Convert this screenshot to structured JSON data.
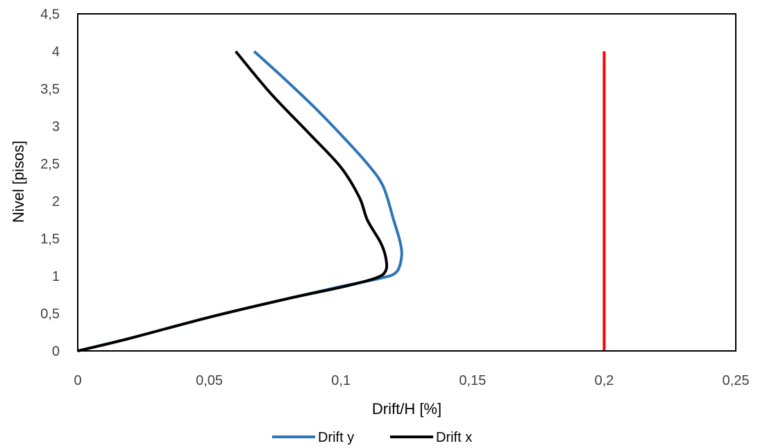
{
  "chart_data": {
    "type": "line",
    "title": "",
    "xlabel": "Drift/H [%]",
    "ylabel": "Nivel [pisos]",
    "xlim": [
      0,
      0.25
    ],
    "ylim": [
      0,
      4.5
    ],
    "xticks": [
      0,
      0.05,
      0.1,
      0.15,
      0.2,
      0.25
    ],
    "xtick_labels": [
      "0",
      "0,05",
      "0,1",
      "0,15",
      "0,2",
      "0,25"
    ],
    "yticks": [
      0,
      0.5,
      1,
      1.5,
      2,
      2.5,
      3,
      3.5,
      4,
      4.5
    ],
    "ytick_labels": [
      "0",
      "0,5",
      "1",
      "1,5",
      "2",
      "2,5",
      "3",
      "3,5",
      "4",
      "4,5"
    ],
    "grid": false,
    "legend_position": "bottom",
    "series": [
      {
        "name": "Drift y",
        "color": "#2E75B6",
        "x": [
          0,
          0.02,
          0.05,
          0.08,
          0.1,
          0.115,
          0.121,
          0.123,
          0.1225,
          0.12,
          0.116,
          0.11,
          0.101,
          0.09,
          0.078,
          0.067
        ],
        "y": [
          0,
          0.17,
          0.45,
          0.7,
          0.86,
          0.97,
          1.05,
          1.25,
          1.45,
          1.75,
          2.2,
          2.5,
          2.85,
          3.25,
          3.65,
          4.0
        ]
      },
      {
        "name": "Drift x",
        "color": "#000000",
        "x": [
          0,
          0.02,
          0.05,
          0.08,
          0.1,
          0.113,
          0.117,
          0.117,
          0.115,
          0.11,
          0.107,
          0.1,
          0.088,
          0.073,
          0.06
        ],
        "y": [
          0,
          0.17,
          0.45,
          0.7,
          0.85,
          0.97,
          1.07,
          1.25,
          1.45,
          1.75,
          2.05,
          2.45,
          2.9,
          3.45,
          4.0
        ]
      },
      {
        "color": "#FF0000",
        "x": [
          0.2,
          0.2
        ],
        "y": [
          0,
          4.0
        ]
      }
    ]
  }
}
